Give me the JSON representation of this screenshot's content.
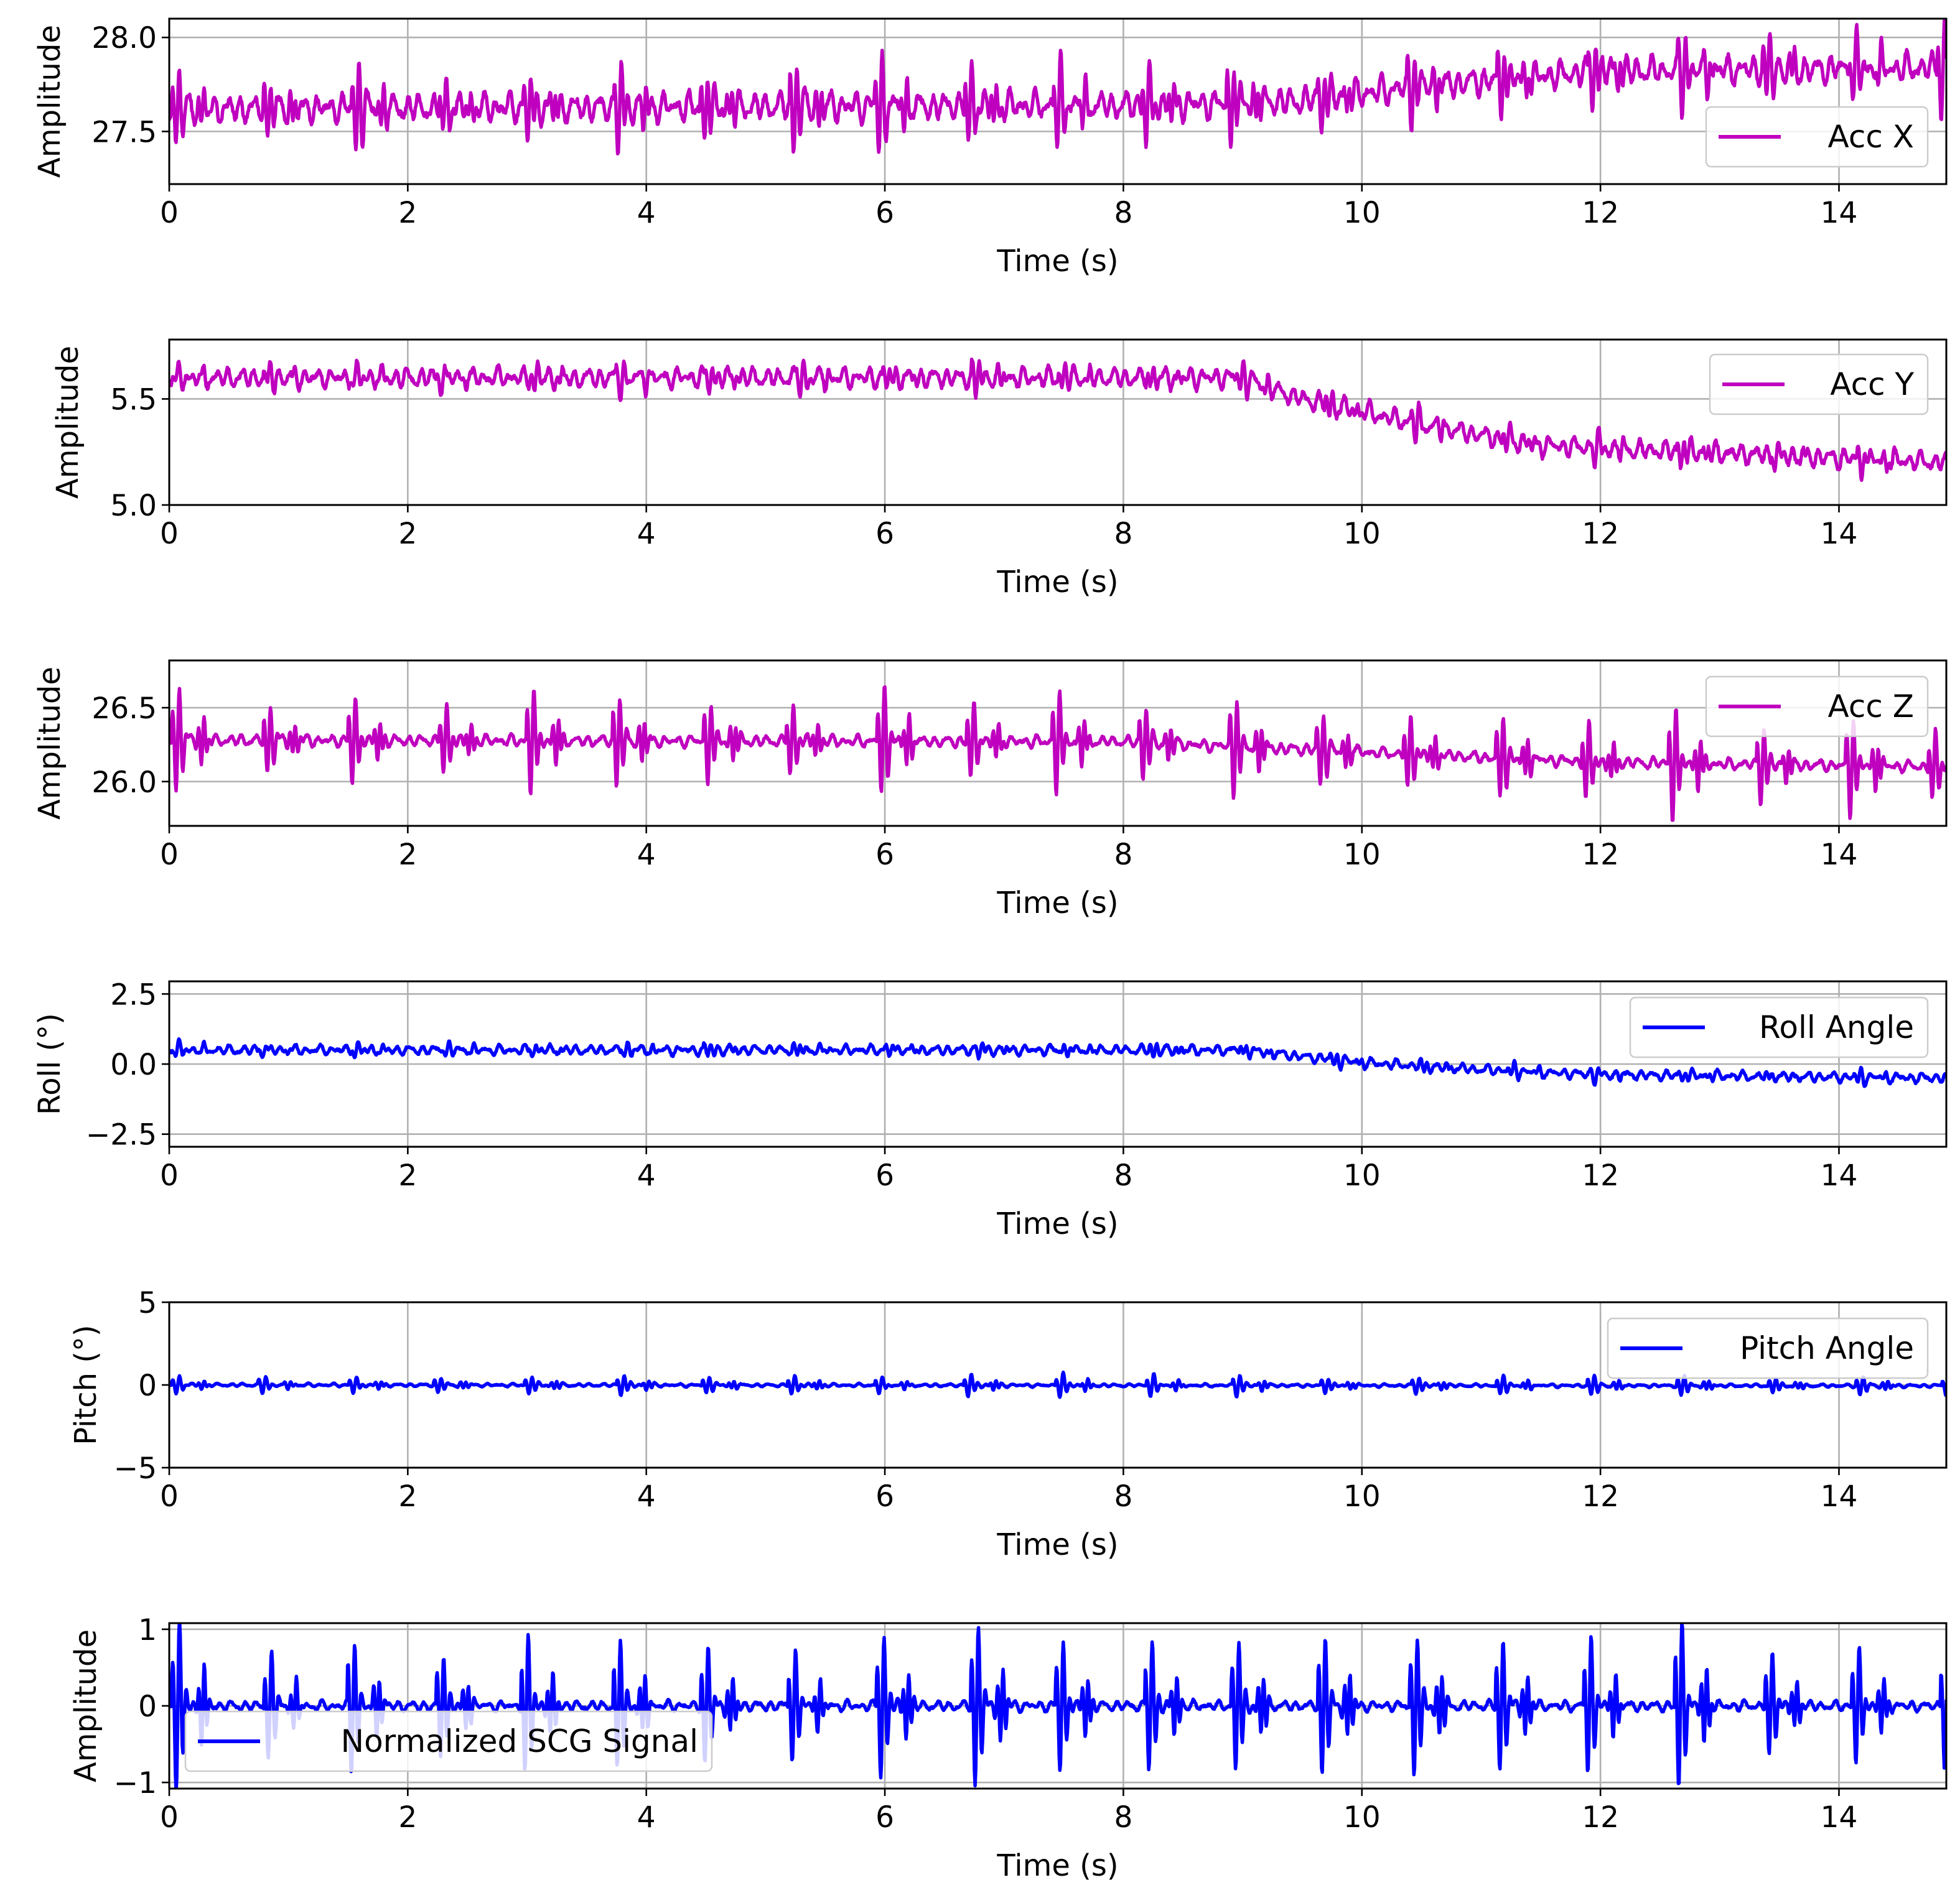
{
  "chart_data": [
    {
      "type": "line",
      "panel": 1,
      "series": [
        {
          "name": "Acc X",
          "color": "#bf00bf",
          "baseline": [
            [
              0,
              27.62
            ],
            [
              8,
              27.64
            ],
            [
              9.5,
              27.66
            ],
            [
              10.5,
              27.74
            ],
            [
              12,
              27.82
            ],
            [
              14.9,
              27.84
            ]
          ],
          "noise": 0.08,
          "beat_amplitude": 0.22
        }
      ],
      "xlabel": "Time (s)",
      "ylabel": "Amplitude",
      "xlim": [
        0,
        14.9
      ],
      "ylim": [
        27.22,
        28.1
      ],
      "xticks": [
        0,
        2,
        4,
        6,
        8,
        10,
        12,
        14
      ],
      "yticks": [
        27.5,
        28.0
      ],
      "xtick_labels": [
        "0",
        "2",
        "4",
        "6",
        "8",
        "10",
        "12",
        "14"
      ],
      "ytick_labels": [
        "27.5",
        "28.0"
      ],
      "grid": true,
      "legend_location": "right"
    },
    {
      "type": "line",
      "panel": 2,
      "series": [
        {
          "name": "Acc Y",
          "color": "#bf00bf",
          "baseline": [
            [
              0,
              5.6
            ],
            [
              9,
              5.6
            ],
            [
              9.5,
              5.5
            ],
            [
              10.5,
              5.38
            ],
            [
              11.5,
              5.28
            ],
            [
              14.9,
              5.2
            ]
          ],
          "noise": 0.05,
          "beat_amplitude": 0.07
        }
      ],
      "xlabel": "Time (s)",
      "ylabel": "Amplitude",
      "xlim": [
        0,
        14.9
      ],
      "ylim": [
        5.0,
        5.78
      ],
      "xticks": [
        0,
        2,
        4,
        6,
        8,
        10,
        12,
        14
      ],
      "yticks": [
        5.0,
        5.5
      ],
      "xtick_labels": [
        "0",
        "2",
        "4",
        "6",
        "8",
        "10",
        "12",
        "14"
      ],
      "ytick_labels": [
        "5.0",
        "5.5"
      ],
      "grid": true,
      "legend_location": "upper right"
    },
    {
      "type": "line",
      "panel": 3,
      "series": [
        {
          "name": "Acc Z",
          "color": "#bf00bf",
          "baseline": [
            [
              0,
              26.28
            ],
            [
              8,
              26.27
            ],
            [
              10,
              26.2
            ],
            [
              12,
              26.13
            ],
            [
              14.9,
              26.1
            ]
          ],
          "noise": 0.04,
          "beat_amplitude": 0.32
        }
      ],
      "xlabel": "Time (s)",
      "ylabel": "Amplitude",
      "xlim": [
        0,
        14.9
      ],
      "ylim": [
        25.7,
        26.82
      ],
      "xticks": [
        0,
        2,
        4,
        6,
        8,
        10,
        12,
        14
      ],
      "yticks": [
        26.0,
        26.5
      ],
      "xtick_labels": [
        "0",
        "2",
        "4",
        "6",
        "8",
        "10",
        "12",
        "14"
      ],
      "ytick_labels": [
        "26.0",
        "26.5"
      ],
      "grid": true,
      "legend_location": "upper right"
    },
    {
      "type": "line",
      "panel": 4,
      "series": [
        {
          "name": "Roll Angle",
          "color": "#0000ff",
          "baseline": [
            [
              0,
              0.5
            ],
            [
              9,
              0.5
            ],
            [
              10,
              0.05
            ],
            [
              11,
              -0.2
            ],
            [
              12,
              -0.38
            ],
            [
              14.9,
              -0.5
            ]
          ],
          "noise": 0.18,
          "beat_amplitude": 0.25
        }
      ],
      "xlabel": "Time (s)",
      "ylabel": "Roll (°)",
      "xlim": [
        0,
        14.9
      ],
      "ylim": [
        -2.95,
        2.95
      ],
      "xticks": [
        0,
        2,
        4,
        6,
        8,
        10,
        12,
        14
      ],
      "yticks": [
        -2.5,
        0.0,
        2.5
      ],
      "xtick_labels": [
        "0",
        "2",
        "4",
        "6",
        "8",
        "10",
        "12",
        "14"
      ],
      "ytick_labels": [
        "−2.5",
        "0.0",
        "2.5"
      ],
      "grid": true,
      "legend_location": "upper right"
    },
    {
      "type": "line",
      "panel": 5,
      "series": [
        {
          "name": "Pitch Angle",
          "color": "#0000ff",
          "baseline": [
            [
              0,
              0.0
            ],
            [
              14.9,
              -0.05
            ]
          ],
          "noise": 0.1,
          "beat_amplitude": 0.65
        }
      ],
      "xlabel": "Time (s)",
      "ylabel": "Pitch (°)",
      "xlim": [
        0,
        14.9
      ],
      "ylim": [
        -5,
        5
      ],
      "xticks": [
        0,
        2,
        4,
        6,
        8,
        10,
        12,
        14
      ],
      "yticks": [
        -5,
        0,
        5
      ],
      "xtick_labels": [
        "0",
        "2",
        "4",
        "6",
        "8",
        "10",
        "12",
        "14"
      ],
      "ytick_labels": [
        "−5",
        "0",
        "5"
      ],
      "grid": true,
      "legend_location": "upper right"
    },
    {
      "type": "line",
      "panel": 6,
      "series": [
        {
          "name": "Normalized SCG Signal",
          "color": "#0000ff",
          "baseline": [
            [
              0,
              0.0
            ],
            [
              14.9,
              0.0
            ]
          ],
          "noise": 0.07,
          "beat_amplitude": 0.95
        }
      ],
      "xlabel": "Time (s)",
      "ylabel": "Amplitude",
      "xlim": [
        0,
        14.9
      ],
      "ylim": [
        -1.08,
        1.08
      ],
      "xticks": [
        0,
        2,
        4,
        6,
        8,
        10,
        12,
        14
      ],
      "yticks": [
        -1,
        0,
        1
      ],
      "xtick_labels": [
        "0",
        "2",
        "4",
        "6",
        "8",
        "10",
        "12",
        "14"
      ],
      "ytick_labels": [
        "−1",
        "0",
        "1"
      ],
      "grid": true,
      "legend_location": "lower left"
    }
  ]
}
